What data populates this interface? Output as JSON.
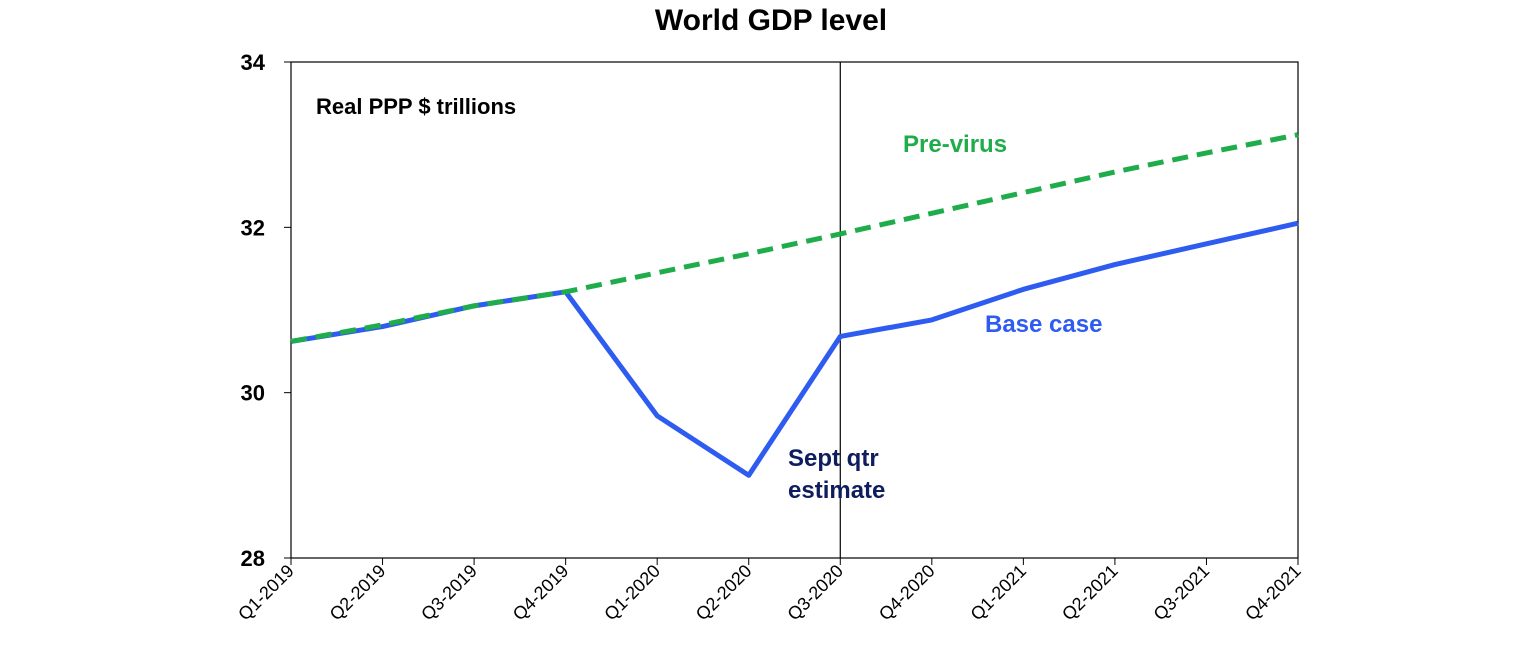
{
  "chart_data": {
    "type": "line",
    "title": "World GDP level",
    "unit_label": "Real PPP $ trillions",
    "categories": [
      "Q1-2019",
      "Q2-2019",
      "Q3-2019",
      "Q4-2019",
      "Q1-2020",
      "Q2-2020",
      "Q3-2020",
      "Q4-2020",
      "Q1-2021",
      "Q2-2021",
      "Q3-2021",
      "Q4-2021"
    ],
    "ylim": [
      28,
      34
    ],
    "yticks": [
      28,
      30,
      32,
      34
    ],
    "series": [
      {
        "name": "Pre-virus",
        "color": "#1fad4b",
        "dash": true,
        "values": [
          30.62,
          30.82,
          31.05,
          31.22,
          31.45,
          31.68,
          31.92,
          32.17,
          32.42,
          32.67,
          32.9,
          33.12
        ]
      },
      {
        "name": "Base case",
        "color": "#2e5bf0",
        "dash": false,
        "values": [
          30.62,
          30.8,
          31.05,
          31.22,
          29.72,
          29.0,
          30.68,
          30.88,
          31.25,
          31.55,
          31.8,
          32.05
        ]
      }
    ],
    "vline_at": "Q3-2020",
    "annotations": [
      {
        "text_lines": [
          "Sept qtr",
          "estimate"
        ],
        "color": "#0d1d5e"
      }
    ],
    "legend": "inline labels"
  }
}
